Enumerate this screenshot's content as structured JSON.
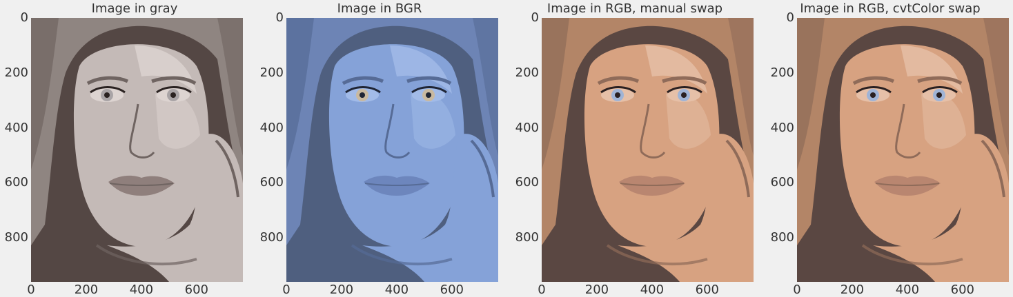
{
  "figure": {
    "panels": [
      {
        "title": "Image in gray",
        "variant": "gray",
        "colors": {
          "bg": "#544744",
          "hair": "#8f8581",
          "skin": "#c4bab7",
          "highlight": "#ddd4d1",
          "shadow": "#6f6461",
          "lips": "#8f7f7c",
          "iris": "#a9a4a6",
          "pupil": "#2a2221"
        }
      },
      {
        "title": "Image in BGR",
        "variant": "bgr",
        "colors": {
          "bg": "#4f5f7f",
          "hair": "#6d84b5",
          "skin": "#85a2d8",
          "highlight": "#a2bbe8",
          "shadow": "#566b96",
          "lips": "#6d86bd",
          "iris": "#c9b9a0",
          "pupil": "#1f2535"
        }
      },
      {
        "title": "Image in RGB, manual swap",
        "variant": "rgb",
        "colors": {
          "bg": "#5a4742",
          "hair": "#b38567",
          "skin": "#d7a281",
          "highlight": "#e6c0a8",
          "shadow": "#8f6b59",
          "lips": "#b98670",
          "iris": "#a0b4d6",
          "pupil": "#2a2021"
        }
      },
      {
        "title": "Image in RGB, cvtColor swap",
        "variant": "rgb",
        "colors": {
          "bg": "#5a4742",
          "hair": "#b38567",
          "skin": "#d7a281",
          "highlight": "#e6c0a8",
          "shadow": "#8f6b59",
          "lips": "#b98670",
          "iris": "#a0b4d6",
          "pupil": "#2a2021"
        }
      }
    ],
    "y_ticks": [
      "0",
      "200",
      "400",
      "600",
      "800"
    ],
    "x_ticks": [
      "0",
      "200",
      "400",
      "600"
    ],
    "image_shape": {
      "height": 960,
      "width": 768
    }
  }
}
